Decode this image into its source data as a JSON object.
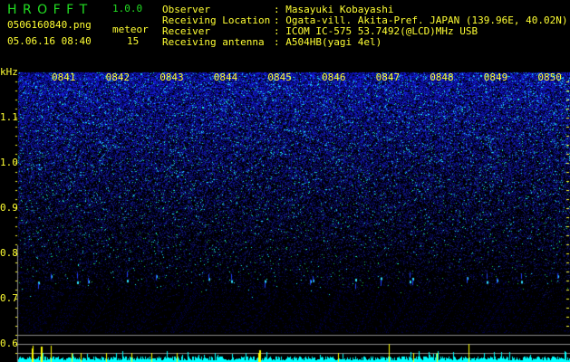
{
  "app": {
    "name": "H R O F F T",
    "version": "1.0.0"
  },
  "file": {
    "name": "0506160840.png",
    "datetime": "05.06.16 08:40"
  },
  "meteor": {
    "label": "meteor",
    "count": "15"
  },
  "station": [
    {
      "label": "Observer",
      "value": ": Masayuki Kobayashi"
    },
    {
      "label": "Receiving Location",
      "value": ": Ogata-vill. Akita-Pref. JAPAN (139.96E, 40.02N)"
    },
    {
      "label": "Receiver",
      "value": ": ICOM IC-575 53.7492(@LCD)MHz USB"
    },
    {
      "label": "Receiving antenna",
      "value": ": A504HB(yagi 4el)"
    }
  ],
  "axis": {
    "y_unit": "kHz",
    "y_ticks": [
      "1.1",
      "1.0",
      "0.9",
      "0.8",
      "0.7",
      "0.6"
    ],
    "x_ticks": [
      "0841",
      "0842",
      "0843",
      "0844",
      "0845",
      "0846",
      "0847",
      "0848",
      "0849",
      "0850"
    ]
  },
  "colors": {
    "text": "#ffff33",
    "title": "#22dd22",
    "spectrum": "#1a2aff",
    "histogram": "#00ffff",
    "meteor_marker": "#ffff00"
  }
}
